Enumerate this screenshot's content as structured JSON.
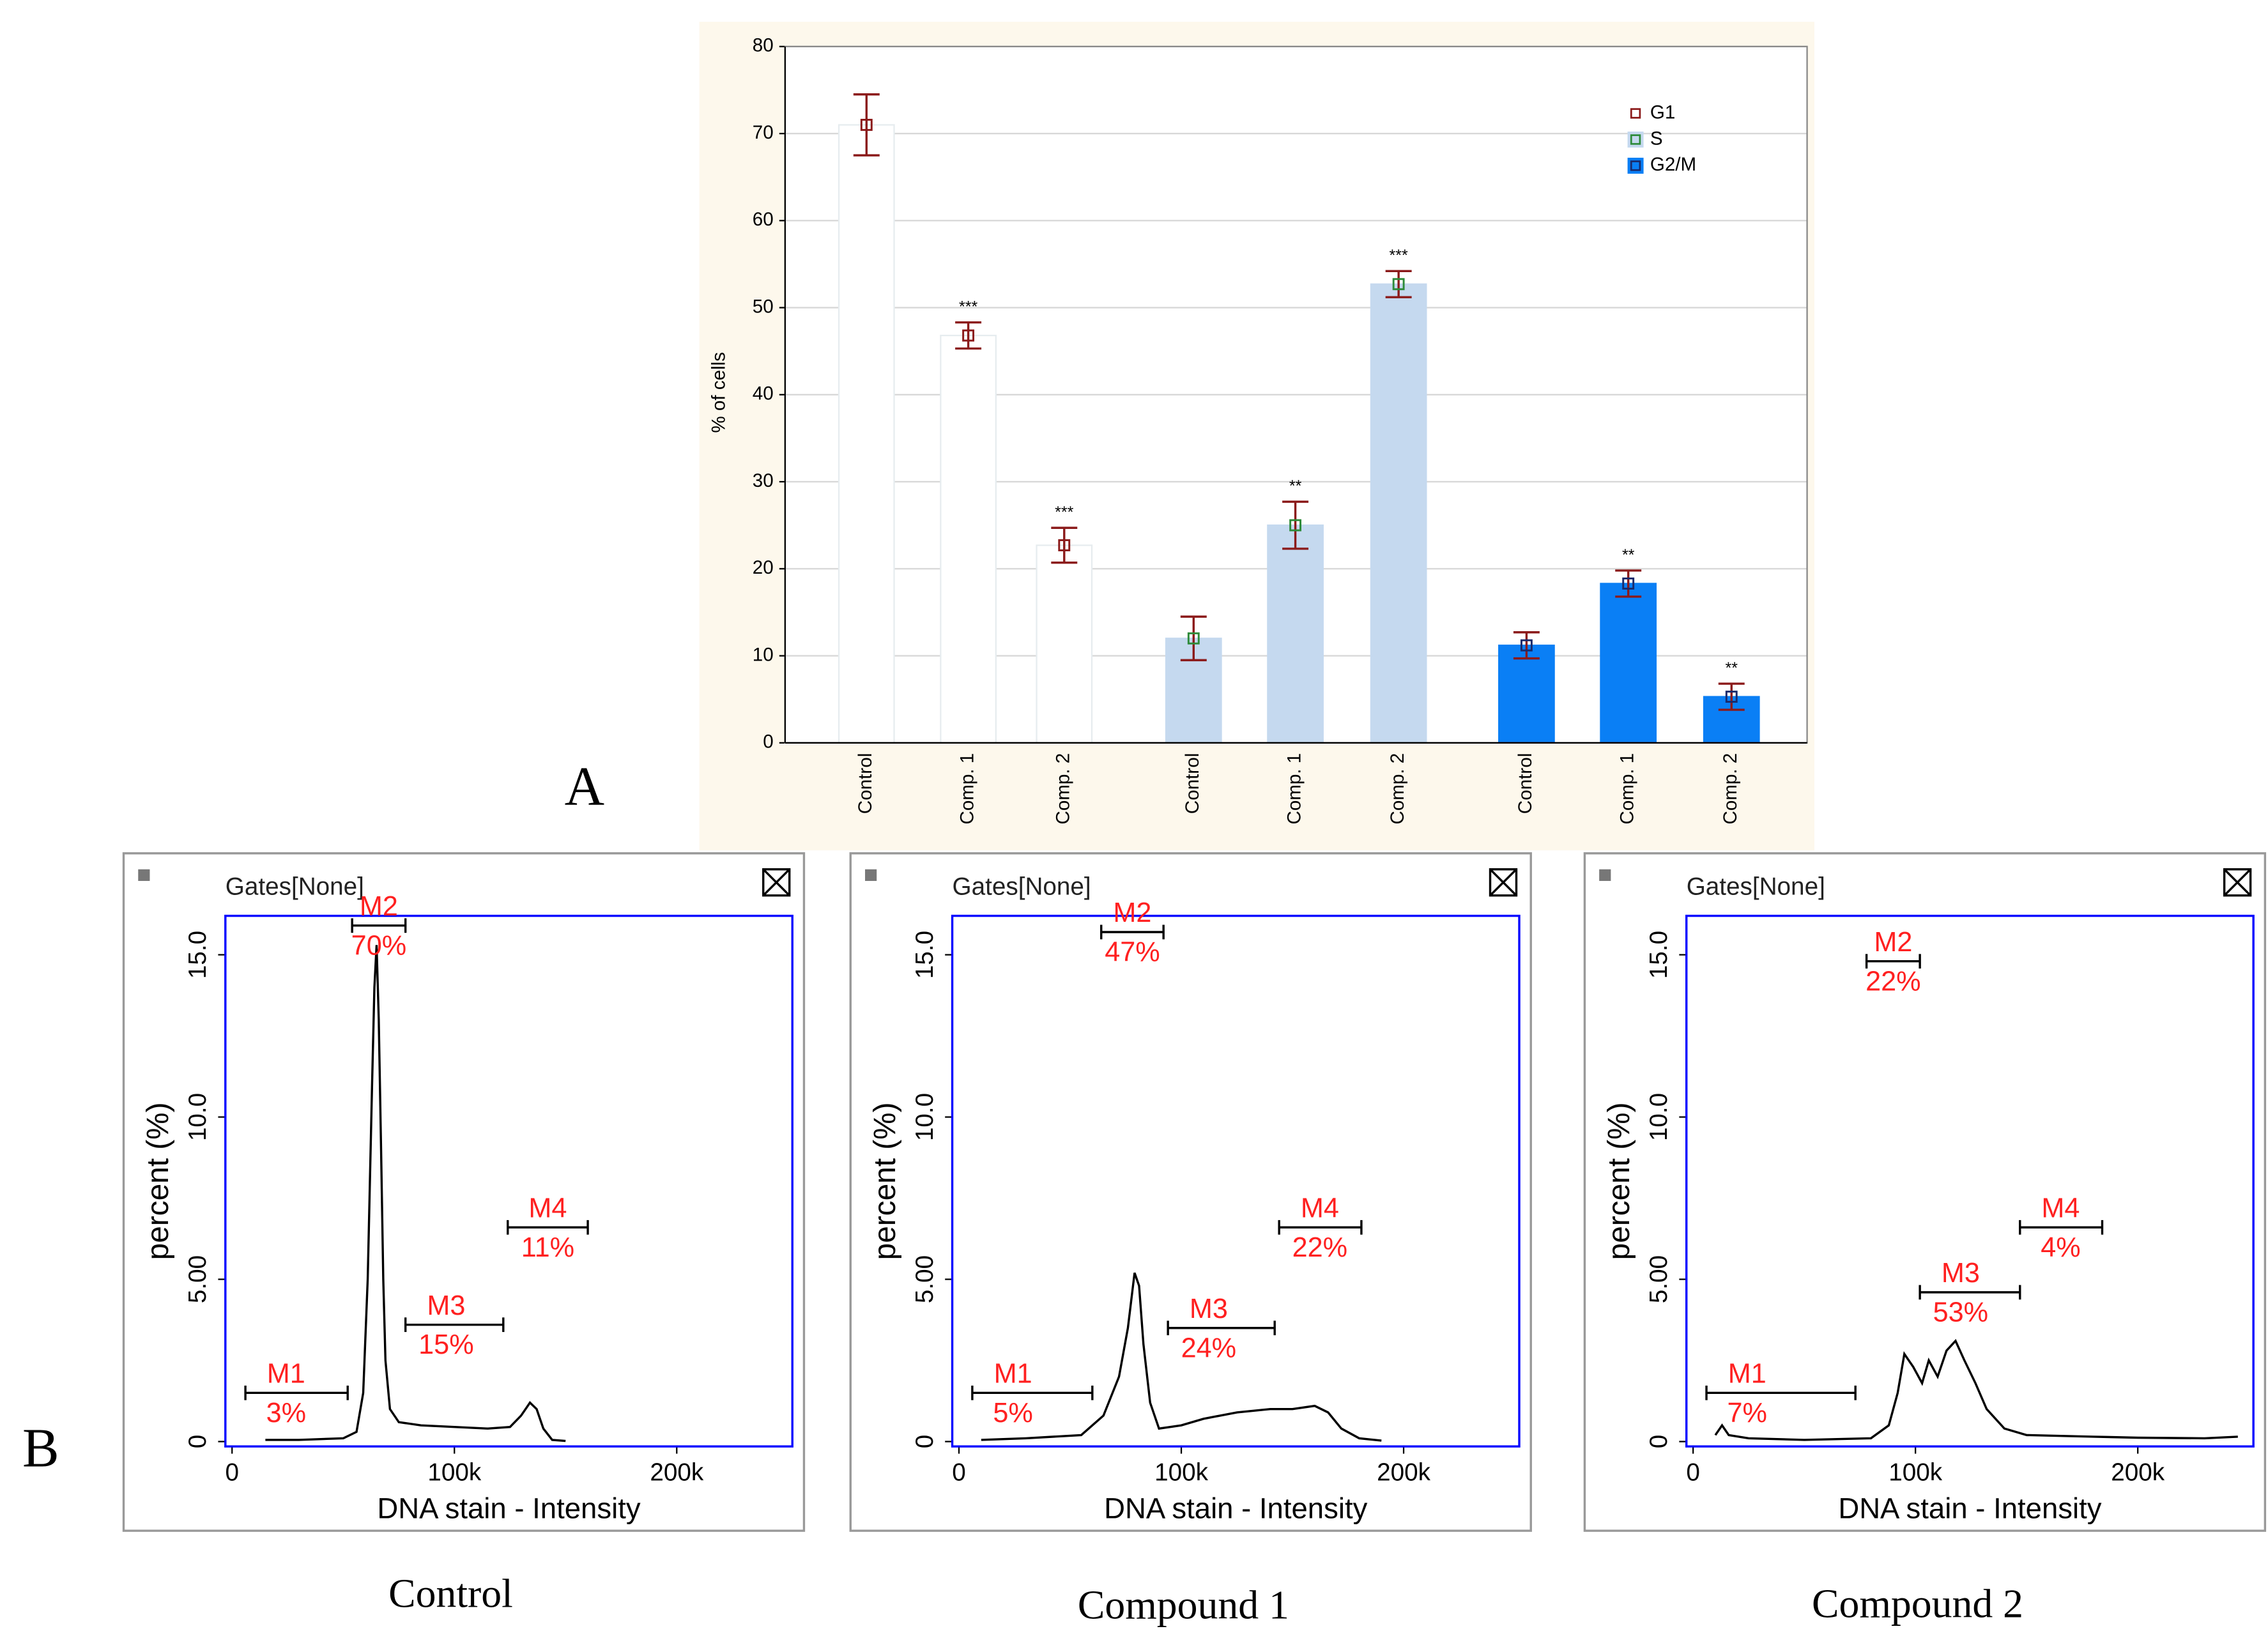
{
  "panel_labels": [
    "A",
    "B"
  ],
  "chart_data": [
    {
      "type": "bar",
      "ylabel": "% of cells",
      "categories": [
        "Control",
        "Comp. 1",
        "Comp. 2",
        "Control",
        "Comp. 1",
        "Comp. 2",
        "Control",
        "Comp. 1",
        "Comp. 2"
      ],
      "series": [
        {
          "name": "G1",
          "color": "#ffffff",
          "marker_color": "#8b1a1a",
          "values": [
            71,
            46.8,
            22.7,
            null,
            null,
            null,
            null,
            null,
            null
          ],
          "errors": [
            3.5,
            1.5,
            2,
            null,
            null,
            null,
            null,
            null,
            null
          ],
          "annotations": [
            null,
            "***",
            "***",
            null,
            null,
            null,
            null,
            null,
            null
          ]
        },
        {
          "name": "S",
          "color": "#c5d9ef",
          "marker_color": "#2e8b3a",
          "values": [
            null,
            null,
            null,
            12,
            25,
            52.7,
            null,
            null,
            null
          ],
          "errors": [
            null,
            null,
            null,
            2.5,
            2.7,
            1.5,
            null,
            null,
            null
          ],
          "annotations": [
            null,
            null,
            null,
            null,
            "**",
            "***",
            null,
            null,
            null
          ]
        },
        {
          "name": "G2/M",
          "color": "#0a7ff5",
          "marker_color": "#1a2a6b",
          "values": [
            null,
            null,
            null,
            null,
            null,
            null,
            11.2,
            18.3,
            5.3
          ],
          "errors": [
            null,
            null,
            null,
            null,
            null,
            null,
            1.5,
            1.5,
            1.5
          ],
          "annotations": [
            null,
            null,
            null,
            null,
            null,
            null,
            null,
            "**",
            "**"
          ]
        }
      ],
      "error_color": "#8b1a1a",
      "ylim": [
        0,
        80
      ],
      "yticks": [
        0,
        10,
        20,
        30,
        40,
        50,
        60,
        70,
        80
      ],
      "grid": true,
      "legend": "top-right"
    },
    {
      "type": "histogram-line",
      "title": "Control",
      "gate_label": "Gates[None]",
      "ylabel": "percent (%)",
      "xlabel": "DNA stain - Intensity",
      "xlim": [
        -3000,
        252000
      ],
      "ylim": [
        -0.15,
        16.2
      ],
      "xticks": [
        0,
        {
          "value": 100000,
          "label": "100k"
        },
        {
          "value": 200000,
          "label": "200k"
        }
      ],
      "yticks": [
        0,
        {
          "value": 5,
          "label": "5.00"
        },
        {
          "value": 10,
          "label": "10.0"
        },
        {
          "value": 15,
          "label": "15.0"
        }
      ],
      "color": "#000000",
      "frame_color": "#0000ff",
      "marker_color": "#ff2020",
      "x": [
        15000,
        30000,
        50000,
        56000,
        59000,
        61000,
        63000,
        64000,
        65000,
        66000,
        67000,
        68000,
        69000,
        71000,
        75000,
        85000,
        100000,
        115000,
        125000,
        130000,
        134000,
        137000,
        140000,
        144000,
        150000
      ],
      "values": [
        0.05,
        0.05,
        0.1,
        0.3,
        1.5,
        5,
        11,
        14,
        15.3,
        13,
        9,
        5,
        2.5,
        1,
        0.6,
        0.5,
        0.45,
        0.4,
        0.45,
        0.8,
        1.2,
        1,
        0.4,
        0.05,
        0.02
      ],
      "markers": [
        {
          "name": "M1",
          "value": 3,
          "value_label": "3%",
          "range": [
            6000,
            52000
          ],
          "y": 1.5
        },
        {
          "name": "M2",
          "value": 70,
          "value_label": "70%",
          "range": [
            54000,
            78000
          ],
          "y": 15.9
        },
        {
          "name": "M3",
          "value": 15,
          "value_label": "15%",
          "range": [
            78000,
            122000
          ],
          "y": 3.6
        },
        {
          "name": "M4",
          "value": 11,
          "value_label": "11%",
          "range": [
            124000,
            160000
          ],
          "y": 6.6
        }
      ]
    },
    {
      "type": "histogram-line",
      "title": "Compound 1",
      "gate_label": "Gates[None]",
      "ylabel": "percent (%)",
      "xlabel": "DNA stain - Intensity",
      "xlim": [
        -3000,
        252000
      ],
      "ylim": [
        -0.15,
        16.2
      ],
      "xticks": [
        0,
        {
          "value": 100000,
          "label": "100k"
        },
        {
          "value": 200000,
          "label": "200k"
        }
      ],
      "yticks": [
        0,
        {
          "value": 5,
          "label": "5.00"
        },
        {
          "value": 10,
          "label": "10.0"
        },
        {
          "value": 15,
          "label": "15.0"
        }
      ],
      "color": "#000000",
      "frame_color": "#0000ff",
      "marker_color": "#ff2020",
      "x": [
        10000,
        30000,
        55000,
        65000,
        72000,
        76000,
        79000,
        81000,
        83000,
        86000,
        90000,
        100000,
        110000,
        125000,
        140000,
        150000,
        160000,
        166000,
        172000,
        180000,
        190000
      ],
      "values": [
        0.05,
        0.1,
        0.2,
        0.8,
        2,
        3.5,
        5.2,
        4.8,
        3,
        1.2,
        0.4,
        0.5,
        0.7,
        0.9,
        1,
        1,
        1.1,
        0.9,
        0.4,
        0.1,
        0.03
      ],
      "markers": [
        {
          "name": "M1",
          "value": 5,
          "value_label": "5%",
          "range": [
            6000,
            60000
          ],
          "y": 1.5
        },
        {
          "name": "M2",
          "value": 47,
          "value_label": "47%",
          "range": [
            64000,
            92000
          ],
          "y": 15.7
        },
        {
          "name": "M3",
          "value": 24,
          "value_label": "24%",
          "range": [
            94000,
            142000
          ],
          "y": 3.5
        },
        {
          "name": "M4",
          "value": 22,
          "value_label": "22%",
          "range": [
            144000,
            181000
          ],
          "y": 6.6
        }
      ]
    },
    {
      "type": "histogram-line",
      "title": "Compound 2",
      "gate_label": "Gates[None]",
      "ylabel": "percent (%)",
      "xlabel": "DNA stain - Intensity",
      "xlim": [
        -3000,
        252000
      ],
      "ylim": [
        -0.15,
        16.2
      ],
      "xticks": [
        0,
        {
          "value": 100000,
          "label": "100k"
        },
        {
          "value": 200000,
          "label": "200k"
        }
      ],
      "yticks": [
        0,
        {
          "value": 5,
          "label": "5.00"
        },
        {
          "value": 10,
          "label": "10.0"
        },
        {
          "value": 15,
          "label": "15.0"
        }
      ],
      "color": "#000000",
      "frame_color": "#0000ff",
      "marker_color": "#ff2020",
      "x": [
        10000,
        13000,
        16000,
        25000,
        50000,
        80000,
        88000,
        92000,
        95000,
        99000,
        103000,
        106000,
        110000,
        114000,
        118000,
        122000,
        127000,
        132000,
        140000,
        150000,
        180000,
        200000,
        230000,
        245000
      ],
      "values": [
        0.2,
        0.5,
        0.2,
        0.1,
        0.05,
        0.1,
        0.5,
        1.5,
        2.7,
        2.3,
        1.8,
        2.5,
        2,
        2.8,
        3.1,
        2.5,
        1.8,
        1,
        0.4,
        0.2,
        0.15,
        0.12,
        0.1,
        0.15
      ],
      "markers": [
        {
          "name": "M1",
          "value": 7,
          "value_label": "7%",
          "range": [
            6000,
            73000
          ],
          "y": 1.5
        },
        {
          "name": "M2",
          "value": 22,
          "value_label": "22%",
          "range": [
            78000,
            102000
          ],
          "y": 14.8
        },
        {
          "name": "M3",
          "value": 53,
          "value_label": "53%",
          "range": [
            102000,
            147000
          ],
          "y": 4.6
        },
        {
          "name": "M4",
          "value": 4,
          "value_label": "4%",
          "range": [
            147000,
            184000
          ],
          "y": 6.6
        }
      ]
    }
  ]
}
